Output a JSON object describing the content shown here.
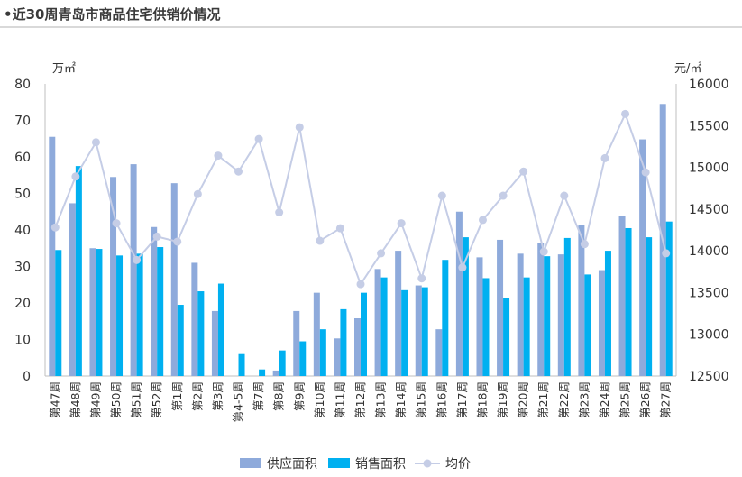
{
  "header": {
    "title": "•近30周青岛市商品住宅供销价情况"
  },
  "chart_data": {
    "type": "bar",
    "title": "•近30周青岛市商品住宅供销价情况",
    "y_left_unit": "万㎡",
    "y_right_unit": "元/㎡",
    "ylim_left": [
      0,
      80
    ],
    "ylim_right": [
      12500,
      16000
    ],
    "yticks_left": [
      "0",
      "10",
      "20",
      "30",
      "40",
      "50",
      "60",
      "70",
      "80"
    ],
    "yticks_right": [
      "12500",
      "13000",
      "13500",
      "14000",
      "14500",
      "15000",
      "15500",
      "16000"
    ],
    "categories": [
      "第47周",
      "第48周",
      "第49周",
      "第50周",
      "第51周",
      "第52周",
      "第1周",
      "第2周",
      "第3周",
      "第4-5周",
      "第7周",
      "第8周",
      "第9周",
      "第10周",
      "第11周",
      "第12周",
      "第13周",
      "第14周",
      "第15周",
      "第16周",
      "第17周",
      "第18周",
      "第19周",
      "第20周",
      "第21周",
      "第22周",
      "第23周",
      "第24周",
      "第25周",
      "第26周",
      "第27周"
    ],
    "series": [
      {
        "name": "供应面积",
        "axis": "left",
        "color": "#8eaadb",
        "values": [
          65.5,
          47.3,
          35.0,
          54.5,
          58.0,
          40.8,
          52.8,
          31.0,
          17.8,
          0,
          0,
          1.5,
          17.8,
          22.8,
          10.3,
          15.8,
          29.3,
          34.3,
          24.8,
          12.8,
          45.0,
          32.5,
          37.3,
          33.5,
          36.3,
          33.3,
          41.3,
          29.0,
          43.8,
          64.8,
          74.5
        ]
      },
      {
        "name": "销售面积",
        "axis": "left",
        "color": "#00b0f0",
        "values": [
          34.5,
          57.5,
          34.8,
          33.0,
          33.5,
          35.3,
          19.5,
          23.2,
          25.3,
          6.0,
          1.8,
          7.0,
          9.5,
          12.8,
          18.3,
          22.8,
          27.0,
          23.5,
          24.3,
          31.8,
          38.0,
          26.8,
          21.3,
          27.0,
          32.8,
          37.8,
          27.8,
          34.3,
          40.5,
          38.0,
          42.3
        ]
      },
      {
        "name": "均价",
        "axis": "right",
        "type": "line",
        "color": "#c5cde6",
        "values": [
          14280,
          14890,
          15300,
          14330,
          13890,
          14170,
          14110,
          14680,
          15140,
          14950,
          15340,
          14460,
          15480,
          14120,
          14270,
          13600,
          13970,
          14330,
          13670,
          14660,
          13800,
          14370,
          14660,
          14950,
          13990,
          14660,
          14080,
          15110,
          15640,
          14940,
          13970
        ]
      }
    ],
    "legend": {
      "position": "bottom",
      "labels": [
        "供应面积",
        "销售面积",
        "均价"
      ]
    },
    "grid": false
  }
}
